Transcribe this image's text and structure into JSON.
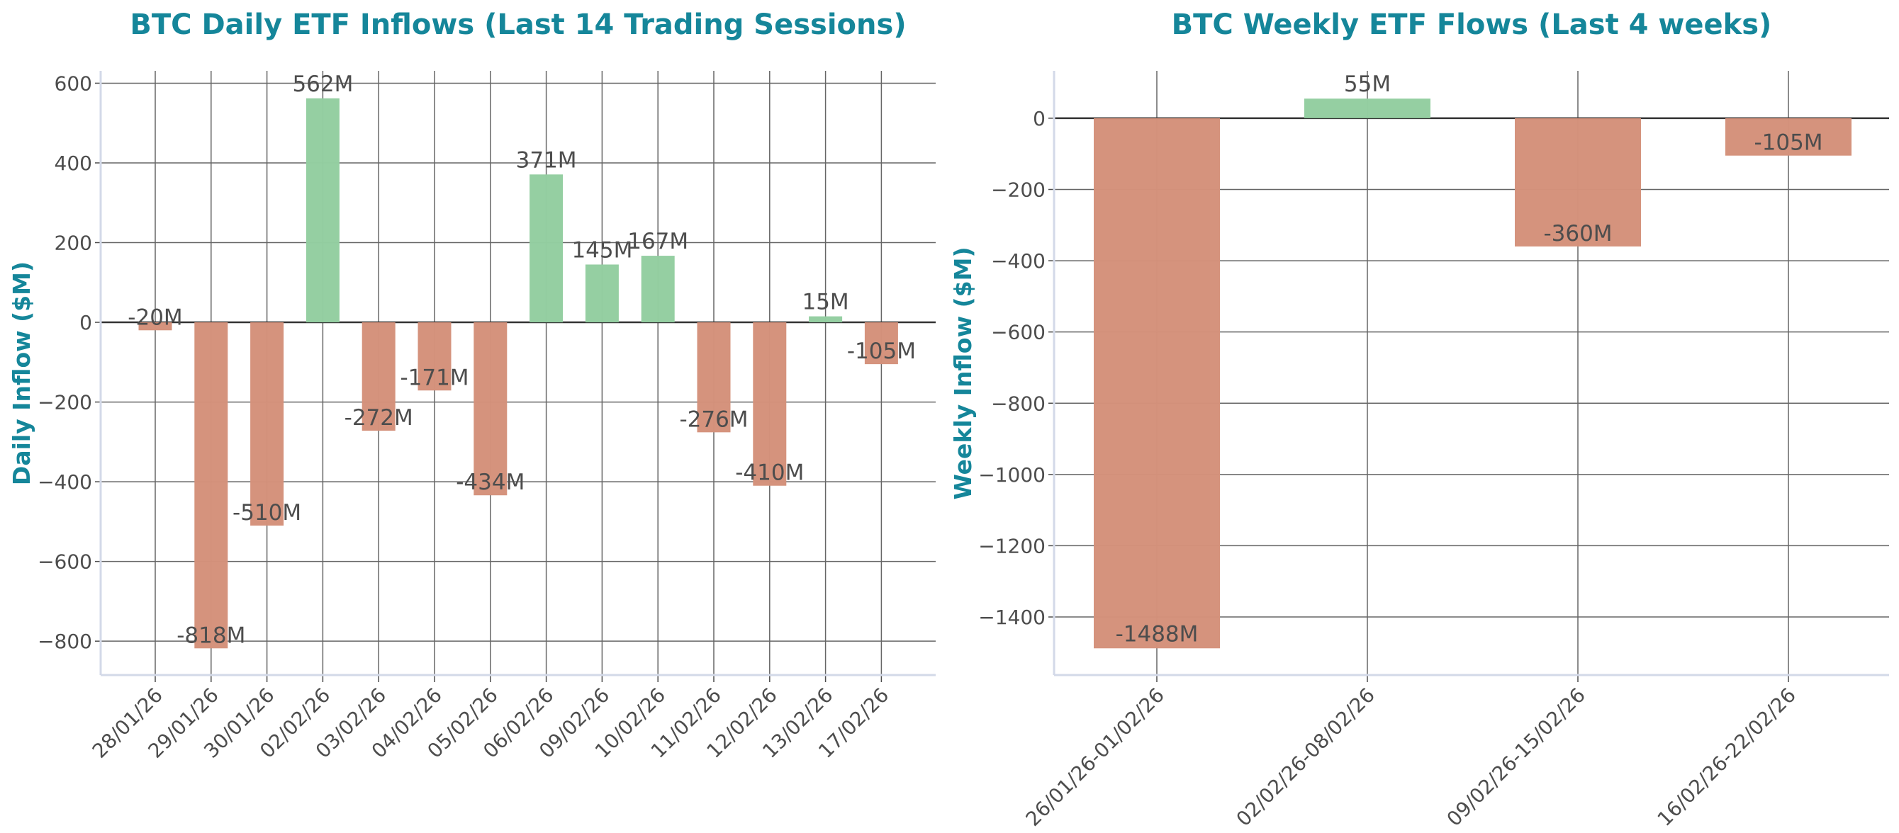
{
  "colors": {
    "positive": "#93cea0",
    "negative": "#d4917a",
    "title": "#15869a",
    "text": "#4d4d4d",
    "grid": "#666666",
    "axis": "#d3d9e8"
  },
  "chart_data": [
    {
      "type": "bar",
      "title": "BTC Daily ETF Inflows (Last 14 Trading Sessions)",
      "xlabel": "",
      "ylabel": "Daily Inflow ($M)",
      "categories": [
        "28/01/26",
        "29/01/26",
        "30/01/26",
        "02/02/26",
        "03/02/26",
        "04/02/26",
        "05/02/26",
        "06/02/26",
        "09/02/26",
        "10/02/26",
        "11/02/26",
        "12/02/26",
        "13/02/26",
        "17/02/26"
      ],
      "values": [
        -20,
        -818,
        -510,
        562,
        -272,
        -171,
        -434,
        371,
        145,
        167,
        -276,
        -410,
        15,
        -105
      ],
      "data_labels": [
        "-20M",
        "-818M",
        "-510M",
        "562M",
        "-272M",
        "-171M",
        "-434M",
        "371M",
        "145M",
        "167M",
        "-276M",
        "-410M",
        "15M",
        "-105M"
      ],
      "yticks": [
        -800,
        -600,
        -400,
        -200,
        0,
        200,
        400,
        600
      ],
      "ytick_labels": [
        "−800",
        "−600",
        "−400",
        "−200",
        "0",
        "200",
        "400",
        "600"
      ],
      "ylim": [
        -885,
        631
      ],
      "grid": true,
      "legend": "none"
    },
    {
      "type": "bar",
      "title": "BTC Weekly ETF Flows (Last 4 weeks)",
      "xlabel": "",
      "ylabel": "Weekly Inflow ($M)",
      "categories": [
        "26/01/26-01/02/26",
        "02/02/26-08/02/26",
        "09/02/26-15/02/26",
        "16/02/26-22/02/26"
      ],
      "values": [
        -1488,
        55,
        -360,
        -105
      ],
      "data_labels": [
        "-1488M",
        "55M",
        "-360M",
        "-105M"
      ],
      "yticks": [
        -1400,
        -1200,
        -1000,
        -800,
        -600,
        -400,
        -200,
        0
      ],
      "ytick_labels": [
        "−1400",
        "−1200",
        "−1000",
        "−800",
        "−600",
        "−400",
        "−200",
        "0"
      ],
      "ylim": [
        -1563,
        133
      ],
      "grid": true,
      "legend": "none"
    }
  ]
}
